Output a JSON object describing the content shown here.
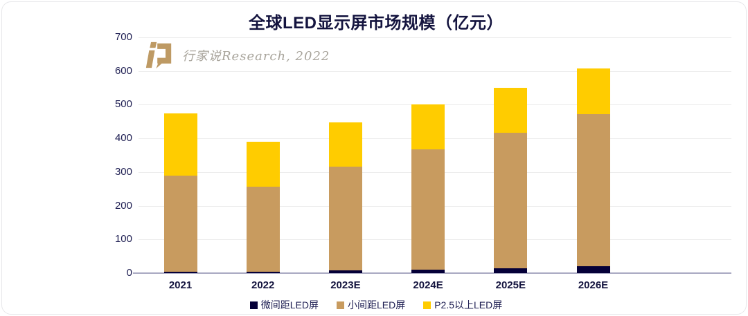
{
  "title": "全球LED显示屏市场规模（亿元）",
  "watermark": {
    "logo": "hangjiashuo-logo",
    "text": "行家说Research, 2022"
  },
  "chart_data": {
    "type": "bar",
    "stacked": true,
    "title": "全球LED显示屏市场规模（亿元）",
    "categories": [
      "2021",
      "2022",
      "2023E",
      "2024E",
      "2025E",
      "2026E"
    ],
    "series": [
      {
        "name": "微间距LED屏",
        "color": "#050038",
        "values": [
          5,
          4,
          8,
          10,
          15,
          20
        ]
      },
      {
        "name": "小间距LED屏",
        "color": "#C89B5F",
        "values": [
          284,
          253,
          308,
          357,
          401,
          453
        ]
      },
      {
        "name": "P2.5以上LED屏",
        "color": "#FFCC00",
        "values": [
          186,
          133,
          132,
          134,
          135,
          134
        ]
      }
    ],
    "totals": [
      475,
      390,
      448,
      501,
      551,
      607
    ],
    "xlabel": "",
    "ylabel": "",
    "ylim": [
      0,
      700
    ],
    "yticks": [
      0,
      100,
      200,
      300,
      400,
      500,
      600,
      700
    ],
    "grid": true,
    "legend_position": "bottom"
  },
  "colors": {
    "title_text": "#14143F",
    "axis_label": "#1E1E52",
    "gridline": "#ECECEC",
    "axis_line": "#A9A9C2",
    "watermark_text": "#A8A49B",
    "logo_gold": "#BE9A64",
    "card_border": "#E7E7EA",
    "background": "#FFFFFF"
  }
}
